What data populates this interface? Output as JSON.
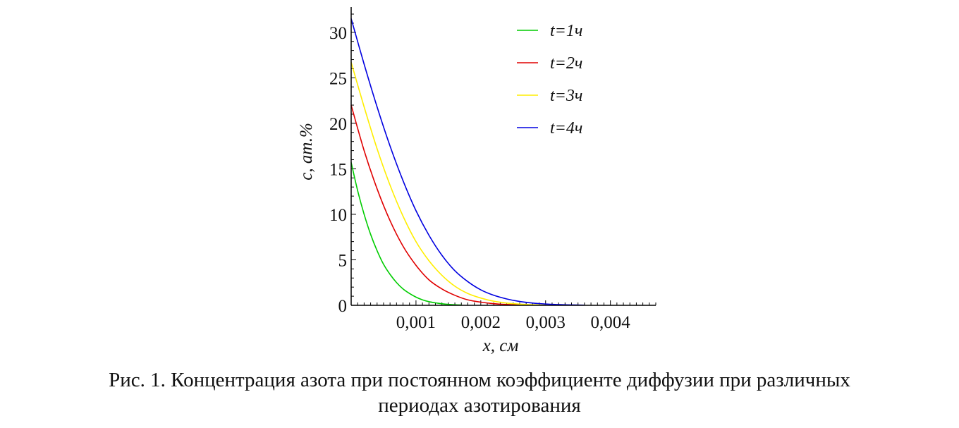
{
  "chart_data": {
    "type": "line",
    "xlabel": "x, см",
    "ylabel": "c, ат.%",
    "xlim": [
      0,
      0.0047
    ],
    "ylim": [
      0,
      32
    ],
    "x_ticks": [
      {
        "value": 0.001,
        "label": "0,001"
      },
      {
        "value": 0.002,
        "label": "0,002"
      },
      {
        "value": 0.003,
        "label": "0,003"
      },
      {
        "value": 0.004,
        "label": "0,004"
      }
    ],
    "y_ticks": [
      {
        "value": 0,
        "label": "0"
      },
      {
        "value": 5,
        "label": "5"
      },
      {
        "value": 10,
        "label": "10"
      },
      {
        "value": 15,
        "label": "15"
      },
      {
        "value": 20,
        "label": "20"
      },
      {
        "value": 25,
        "label": "25"
      },
      {
        "value": 30,
        "label": "30"
      }
    ],
    "legend_position": "top-right",
    "series": [
      {
        "name": "t=1ч",
        "label_var": "t",
        "label_rest": "=1ч",
        "color": "#00cc00",
        "x": [
          0,
          0.0001,
          0.0002,
          0.0003,
          0.0004,
          0.0005,
          0.0006,
          0.0007,
          0.0008,
          0.0009,
          0.001,
          0.0011,
          0.0012,
          0.0013,
          0.0014,
          0.0015,
          0.0016,
          0.0017
        ],
        "y": [
          15.7,
          12.6,
          10.0,
          7.8,
          6.0,
          4.5,
          3.4,
          2.5,
          1.8,
          1.3,
          0.9,
          0.6,
          0.4,
          0.27,
          0.17,
          0.1,
          0.06,
          0.03
        ]
      },
      {
        "name": "t=2ч",
        "label_var": "t",
        "label_rest": "=2ч",
        "color": "#e00000",
        "x": [
          0,
          0.0002,
          0.0004,
          0.0006,
          0.0008,
          0.001,
          0.0012,
          0.0014,
          0.0016,
          0.0018,
          0.002,
          0.0022,
          0.0024,
          0.0026
        ],
        "y": [
          22.0,
          17.0,
          12.8,
          9.3,
          6.5,
          4.4,
          2.8,
          1.8,
          1.1,
          0.6,
          0.35,
          0.18,
          0.09,
          0.04
        ]
      },
      {
        "name": "t=3ч",
        "label_var": "t",
        "label_rest": "=3ч",
        "color": "#ffee00",
        "x": [
          0,
          0.0002,
          0.0004,
          0.0006,
          0.0008,
          0.001,
          0.0012,
          0.0014,
          0.0016,
          0.0018,
          0.002,
          0.0022,
          0.0024,
          0.0026,
          0.0028,
          0.003
        ],
        "y": [
          26.7,
          21.8,
          17.2,
          13.2,
          9.8,
          7.0,
          4.9,
          3.3,
          2.1,
          1.3,
          0.8,
          0.45,
          0.25,
          0.13,
          0.06,
          0.03
        ]
      },
      {
        "name": "t=4ч",
        "label_var": "t",
        "label_rest": "=4ч",
        "color": "#0000e0",
        "x": [
          0,
          0.0002,
          0.0004,
          0.0006,
          0.0008,
          0.001,
          0.0012,
          0.0014,
          0.0016,
          0.0018,
          0.002,
          0.0022,
          0.0024,
          0.0026,
          0.0028,
          0.003,
          0.0032,
          0.0034,
          0.0036
        ],
        "y": [
          31.5,
          26.5,
          21.8,
          17.5,
          13.7,
          10.4,
          7.7,
          5.5,
          3.8,
          2.6,
          1.7,
          1.1,
          0.7,
          0.42,
          0.25,
          0.14,
          0.08,
          0.04,
          0.02
        ]
      }
    ]
  },
  "caption": {
    "line1": "Рис. 1. Концентрация азота при постоянном коэффициенте диффузии при различных",
    "line2": "периодах азотирования"
  }
}
